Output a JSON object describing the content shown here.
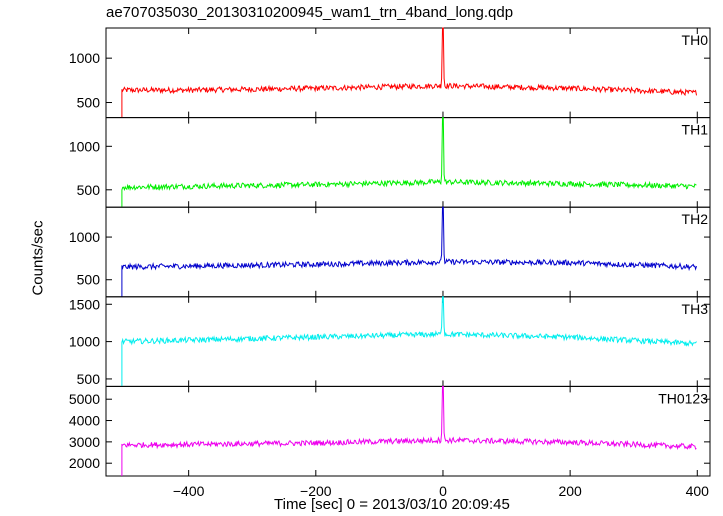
{
  "chart_data": {
    "type": "line",
    "title": "ae707035030_20130310200945_wam1_trn_4band_long.qdp",
    "xlabel": "Time [sec] 0 = 2013/03/10 20:09:45",
    "ylabel": "Counts/sec",
    "xlim": [
      -530,
      420
    ],
    "xticks": [
      -400,
      -200,
      0,
      200,
      400
    ],
    "xticklabels": [
      "−400",
      "−200",
      "0",
      "200",
      "400"
    ],
    "grid": false,
    "panels": [
      {
        "name": "TH0",
        "color": "#ff0000",
        "ylim": [
          330,
          1340
        ],
        "yticks": [
          500,
          1000
        ],
        "start_x": -505,
        "end_x": 400,
        "profile": [
          {
            "x": -505,
            "y": 640
          },
          {
            "x": -400,
            "y": 640
          },
          {
            "x": -200,
            "y": 660
          },
          {
            "x": 0,
            "y": 690
          },
          {
            "x": 200,
            "y": 660
          },
          {
            "x": 400,
            "y": 610
          }
        ],
        "spike": {
          "x": 0,
          "y": 1340
        }
      },
      {
        "name": "TH1",
        "color": "#00ee00",
        "ylim": [
          300,
          1330
        ],
        "yticks": [
          500,
          1000
        ],
        "start_x": -505,
        "end_x": 400,
        "profile": [
          {
            "x": -505,
            "y": 530
          },
          {
            "x": -400,
            "y": 540
          },
          {
            "x": -200,
            "y": 560
          },
          {
            "x": 0,
            "y": 590
          },
          {
            "x": 200,
            "y": 570
          },
          {
            "x": 400,
            "y": 540
          }
        ],
        "spike": {
          "x": 0,
          "y": 1330
        }
      },
      {
        "name": "TH2",
        "color": "#0000cc",
        "ylim": [
          300,
          1350
        ],
        "yticks": [
          500,
          1000
        ],
        "start_x": -505,
        "end_x": 400,
        "profile": [
          {
            "x": -505,
            "y": 650
          },
          {
            "x": -400,
            "y": 660
          },
          {
            "x": -200,
            "y": 680
          },
          {
            "x": 0,
            "y": 710
          },
          {
            "x": 200,
            "y": 700
          },
          {
            "x": 400,
            "y": 650
          }
        ],
        "spike": {
          "x": 0,
          "y": 1350
        }
      },
      {
        "name": "TH3",
        "color": "#00eeee",
        "ylim": [
          400,
          1600
        ],
        "yticks": [
          500,
          1000,
          1500
        ],
        "start_x": -505,
        "end_x": 400,
        "profile": [
          {
            "x": -505,
            "y": 1000
          },
          {
            "x": -400,
            "y": 1020
          },
          {
            "x": -200,
            "y": 1060
          },
          {
            "x": 0,
            "y": 1100
          },
          {
            "x": 200,
            "y": 1060
          },
          {
            "x": 400,
            "y": 970
          }
        ],
        "spike": {
          "x": 0,
          "y": 1600
        }
      },
      {
        "name": "TH0123",
        "color": "#ee00ee",
        "ylim": [
          1400,
          5600
        ],
        "yticks": [
          2000,
          3000,
          4000,
          5000
        ],
        "start_x": -505,
        "end_x": 400,
        "profile": [
          {
            "x": -505,
            "y": 2850
          },
          {
            "x": -400,
            "y": 2880
          },
          {
            "x": -200,
            "y": 2950
          },
          {
            "x": 0,
            "y": 3080
          },
          {
            "x": 200,
            "y": 2980
          },
          {
            "x": 400,
            "y": 2770
          }
        ],
        "spike": {
          "x": 0,
          "y": 5600
        }
      }
    ]
  }
}
